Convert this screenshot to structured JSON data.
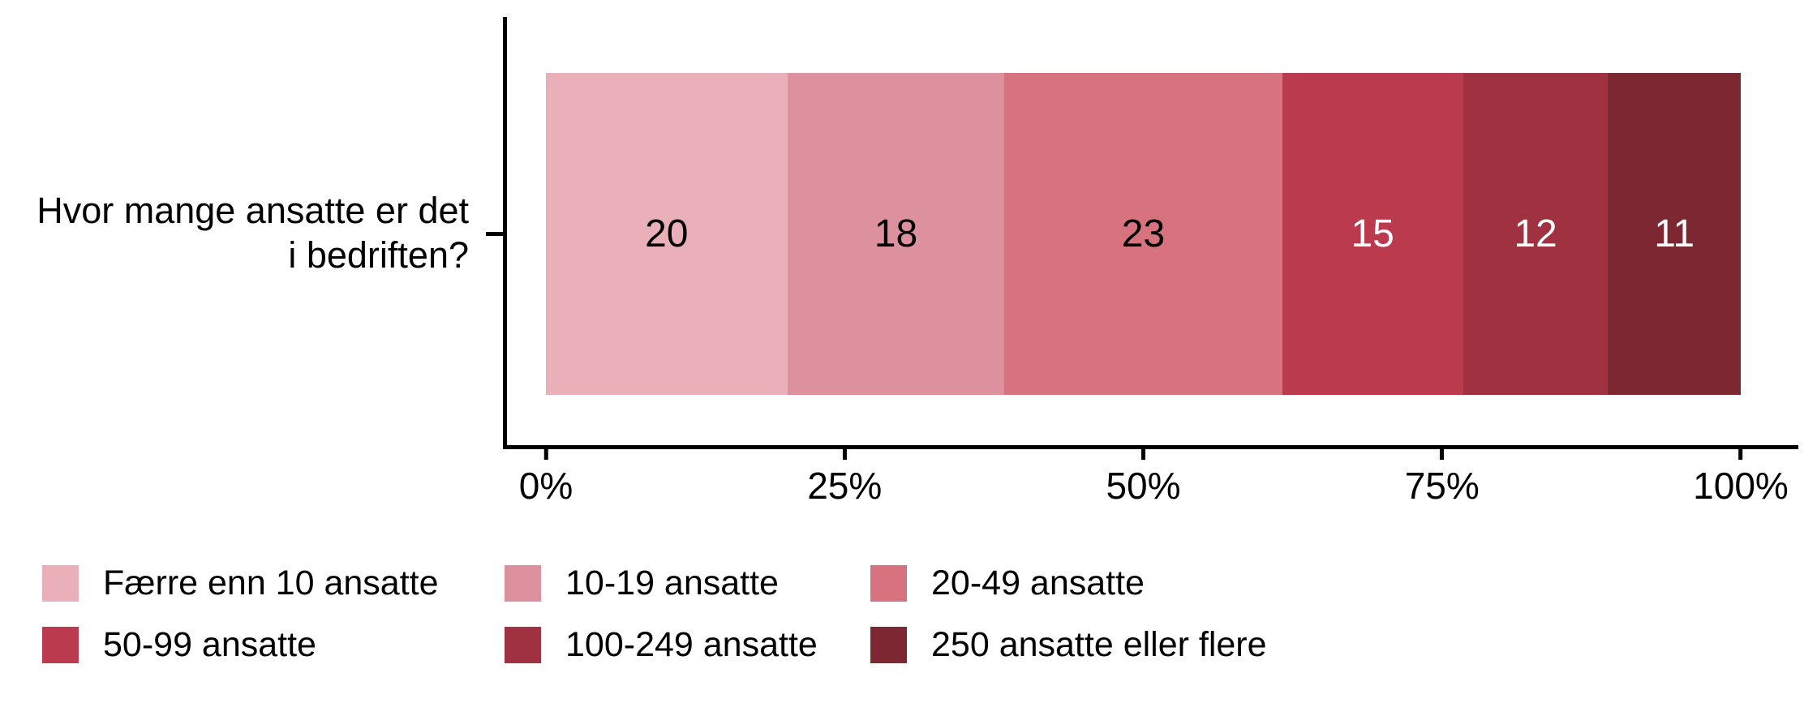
{
  "chart_data": {
    "type": "bar",
    "orientation": "horizontal",
    "stacked": true,
    "normalized_to_100_percent": true,
    "title": "",
    "category_label_lines": [
      "Hvor mange ansatte er det",
      "i bedriften?"
    ],
    "x_ticks": [
      "0%",
      "25%",
      "50%",
      "75%",
      "100%"
    ],
    "x_range_percent": [
      0,
      100
    ],
    "grid": false,
    "legend_position": "bottom",
    "segments": [
      {
        "label": "Færre enn 10 ansatte",
        "value": 20,
        "color": "#EAB0B9",
        "text_color": "#000000"
      },
      {
        "label": "10-19 ansatte",
        "value": 18,
        "color": "#DD919E",
        "text_color": "#000000"
      },
      {
        "label": "20-49 ansatte",
        "value": 23,
        "color": "#D6737F",
        "text_color": "#000000"
      },
      {
        "label": "50-99 ansatte",
        "value": 15,
        "color": "#BC3A4E",
        "text_color": "#FFFFFF"
      },
      {
        "label": "100-249 ansatte",
        "value": 12,
        "color": "#9F3140",
        "text_color": "#FFFFFF"
      },
      {
        "label": "250 ansatte eller flere",
        "value": 11,
        "color": "#7D2733",
        "text_color": "#FFFFFF"
      }
    ],
    "axis_color": "#000000"
  }
}
